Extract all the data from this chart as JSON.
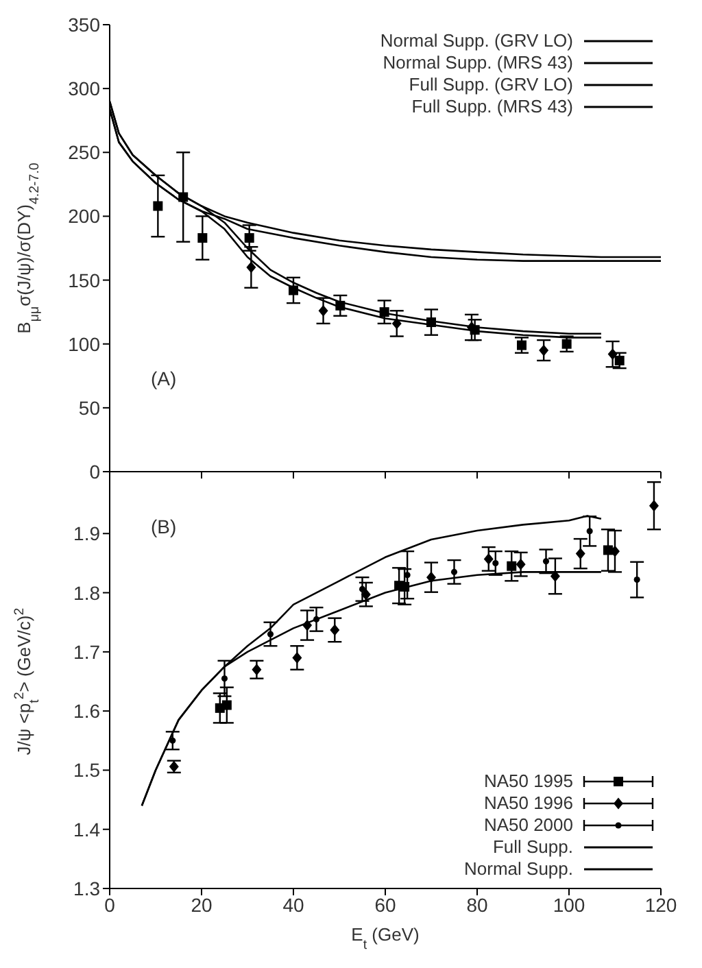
{
  "chart_data": [
    {
      "type": "line",
      "ylabel": "B$_{μμ}$σ(J/ψ)/σ(DY)$_{4.2-7.0}$",
      "xlim": [
        0,
        120
      ],
      "xticks": [
        0,
        20,
        40,
        60,
        80,
        100,
        120
      ],
      "ylim": [
        0,
        350
      ],
      "yticks": [
        0,
        50,
        100,
        150,
        200,
        250,
        300,
        350
      ],
      "tick_labels": "y",
      "grid": false,
      "legend": "top right",
      "annotations": [
        "(A)"
      ],
      "series": [
        {
          "name": "Normal Supp. (GRV LO)",
          "color": "#000000",
          "marker": "none",
          "x": [
            0,
            2,
            5,
            10,
            15,
            20,
            25,
            30,
            40,
            50,
            60,
            70,
            80,
            90,
            107,
            120
          ],
          "values": [
            290,
            265,
            248,
            232,
            218,
            208,
            200,
            195,
            187,
            181,
            177,
            174,
            172,
            170,
            168,
            168
          ]
        },
        {
          "name": "Normal Supp. (MRS 43)",
          "color": "#000000",
          "marker": "none",
          "x": [
            0,
            2,
            5,
            10,
            15,
            20,
            25,
            30,
            40,
            50,
            60,
            70,
            80,
            90,
            120
          ],
          "values": [
            284,
            258,
            243,
            226,
            213,
            204,
            198,
            190,
            183,
            177,
            172,
            168,
            166,
            165,
            165
          ]
        },
        {
          "name": "Full Supp. (GRV LO)",
          "color": "#000000",
          "marker": "none",
          "x": [
            0,
            2,
            5,
            10,
            15,
            20,
            25,
            30,
            35,
            40,
            45,
            50,
            60,
            70,
            80,
            90,
            100,
            107
          ],
          "values": [
            290,
            265,
            248,
            232,
            218,
            208,
            195,
            175,
            158,
            148,
            140,
            133,
            124,
            118,
            113,
            110,
            108,
            108
          ]
        },
        {
          "name": "Full Supp. (MRS 43)",
          "color": "#000000",
          "marker": "none",
          "x": [
            0,
            2,
            5,
            10,
            15,
            20,
            25,
            30,
            35,
            40,
            45,
            50,
            60,
            70,
            80,
            90,
            100,
            107
          ],
          "values": [
            284,
            258,
            243,
            226,
            213,
            204,
            190,
            168,
            153,
            144,
            136,
            129,
            120,
            115,
            110,
            107,
            105,
            105
          ]
        },
        {
          "type": "scatter",
          "color": "#000000",
          "marker": "square",
          "x": [
            10.5,
            16,
            20.2,
            30.4,
            40,
            50.2,
            59.8,
            70,
            79.5,
            89.7,
            99.5,
            111
          ],
          "values": [
            208,
            215,
            183,
            183,
            142,
            130,
            125,
            117,
            111,
            99,
            100,
            87
          ],
          "errors": [
            24,
            35,
            17,
            10,
            10,
            8,
            9,
            10,
            8,
            6,
            6,
            6
          ]
        },
        {
          "type": "scatter",
          "color": "#000000",
          "marker": "diamond",
          "x": [
            30.8,
            46.5,
            62.5,
            78.8,
            94.5,
            109.5
          ],
          "values": [
            160,
            126,
            116,
            113,
            95,
            92
          ],
          "errors": [
            16,
            10,
            10,
            10,
            8,
            10
          ]
        }
      ]
    },
    {
      "type": "scatter",
      "xlabel": "E$_{t}$ (GeV)",
      "ylabel": "J/ψ <p$_{t}$$^{2}$> (GeV/c)$^{2}$",
      "xlim": [
        0,
        120
      ],
      "xticks": [
        0,
        20,
        40,
        60,
        80,
        100,
        120
      ],
      "ylim": [
        1.3,
        2.0
      ],
      "yticks": [
        1.3,
        1.4,
        1.5,
        1.6,
        1.7,
        1.8,
        1.9
      ],
      "grid": false,
      "legend": "bottom right",
      "annotations": [
        "(B)"
      ],
      "series": [
        {
          "name": "NA50 1995",
          "color": "#000000",
          "marker": "square",
          "x": [
            24,
            25.5,
            63,
            64.2,
            87.5,
            108.5
          ],
          "values": [
            1.605,
            1.61,
            1.812,
            1.81,
            1.845,
            1.872
          ],
          "errors": [
            0.025,
            0.03,
            0.03,
            0.03,
            0.025,
            0.035
          ]
        },
        {
          "name": "NA50 1996",
          "color": "#000000",
          "marker": "diamond",
          "x": [
            14,
            32,
            40.8,
            43,
            49,
            55.8,
            70,
            82.5,
            89.5,
            97,
            102.5,
            110,
            118.5
          ],
          "values": [
            1.506,
            1.67,
            1.69,
            1.745,
            1.737,
            1.797,
            1.826,
            1.857,
            1.848,
            1.828,
            1.866,
            1.87,
            1.947
          ],
          "errors": [
            0.01,
            0.015,
            0.02,
            0.025,
            0.02,
            0.02,
            0.025,
            0.02,
            0.02,
            0.03,
            0.025,
            0.035,
            0.04
          ]
        },
        {
          "name": "NA50 2000",
          "color": "#000000",
          "marker": "circle",
          "x": [
            13.7,
            25,
            35,
            45,
            55,
            64.8,
            75,
            84,
            95,
            104.5,
            114.8
          ],
          "values": [
            1.55,
            1.655,
            1.73,
            1.755,
            1.806,
            1.83,
            1.835,
            1.85,
            1.853,
            1.904,
            1.822
          ],
          "errors": [
            0.015,
            0.03,
            0.02,
            0.02,
            0.02,
            0.04,
            0.02,
            0.02,
            0.02,
            0.025,
            0.03
          ]
        },
        {
          "name": "Full Supp.",
          "type": "line",
          "color": "#000000",
          "marker": "none",
          "x": [
            7,
            10,
            15,
            20,
            25,
            30,
            35,
            40,
            50,
            60,
            70,
            80,
            90,
            100,
            104,
            107
          ],
          "values": [
            1.44,
            1.5,
            1.585,
            1.635,
            1.675,
            1.71,
            1.74,
            1.78,
            1.82,
            1.86,
            1.89,
            1.905,
            1.915,
            1.922,
            1.93,
            1.925
          ]
        },
        {
          "name": "Normal Supp.",
          "type": "line",
          "color": "#000000",
          "marker": "none",
          "x": [
            7,
            10,
            15,
            20,
            25,
            30,
            40,
            50,
            60,
            70,
            80,
            90,
            100,
            107
          ],
          "values": [
            1.44,
            1.5,
            1.585,
            1.635,
            1.675,
            1.7,
            1.74,
            1.77,
            1.8,
            1.82,
            1.83,
            1.835,
            1.835,
            1.835
          ]
        }
      ]
    }
  ]
}
